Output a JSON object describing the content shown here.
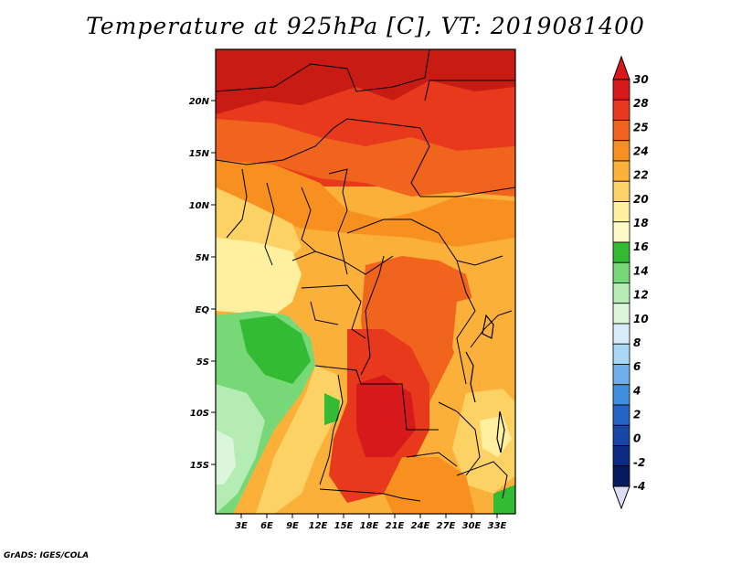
{
  "title": "Temperature at 925hPa [C], VT: 2019081400",
  "credit": "GrADS: IGES/COLA",
  "map": {
    "region": "Central / Southern Africa",
    "lat_labels": [
      "20N",
      "15N",
      "10N",
      "5N",
      "EQ",
      "5S",
      "10S",
      "15S"
    ],
    "lon_labels": [
      "3E",
      "6E",
      "9E",
      "12E",
      "15E",
      "18E",
      "21E",
      "24E",
      "27E",
      "30E",
      "33E"
    ],
    "lat_range": [
      -19.5,
      24.5
    ],
    "lon_range": [
      0,
      35
    ]
  },
  "colorbar": {
    "levels": [
      "30",
      "28",
      "25",
      "24",
      "22",
      "20",
      "18",
      "16",
      "14",
      "12",
      "10",
      "8",
      "6",
      "4",
      "2",
      "0",
      "-2",
      "-4"
    ],
    "colors": [
      "#d7191c",
      "#e8391c",
      "#f0641e",
      "#f7901f",
      "#fbb139",
      "#fdd265",
      "#fff0a0",
      "#fef9c9",
      "#33bb33",
      "#77d877",
      "#b5ecb3",
      "#dcf6dc",
      "#d7ecfa",
      "#a8d7f6",
      "#6faee9",
      "#3f8fde",
      "#2364c7",
      "#1846a6",
      "#0d2a85",
      "#081a5e"
    ],
    "extend_colors": [
      "#d7191c",
      "#dcdcf5"
    ]
  }
}
